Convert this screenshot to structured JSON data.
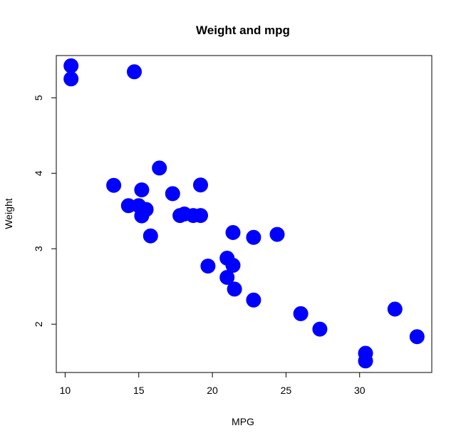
{
  "chart_data": {
    "type": "scatter",
    "title": "Weight and mpg",
    "xlabel": "MPG",
    "ylabel": "Weight",
    "xlim": [
      9.4,
      34.9
    ],
    "ylim": [
      1.36,
      5.56
    ],
    "xticks": [
      10,
      15,
      20,
      25,
      30
    ],
    "yticks": [
      2,
      3,
      4,
      5
    ],
    "grid": false,
    "marker_color": "#0000ff",
    "points": [
      {
        "x": 21.0,
        "y": 2.62
      },
      {
        "x": 21.0,
        "y": 2.875
      },
      {
        "x": 22.8,
        "y": 2.32
      },
      {
        "x": 21.4,
        "y": 3.215
      },
      {
        "x": 18.7,
        "y": 3.44
      },
      {
        "x": 18.1,
        "y": 3.46
      },
      {
        "x": 14.3,
        "y": 3.57
      },
      {
        "x": 24.4,
        "y": 3.19
      },
      {
        "x": 22.8,
        "y": 3.15
      },
      {
        "x": 19.2,
        "y": 3.44
      },
      {
        "x": 17.8,
        "y": 3.44
      },
      {
        "x": 16.4,
        "y": 4.07
      },
      {
        "x": 17.3,
        "y": 3.73
      },
      {
        "x": 15.2,
        "y": 3.78
      },
      {
        "x": 10.4,
        "y": 5.25
      },
      {
        "x": 10.4,
        "y": 5.424
      },
      {
        "x": 14.7,
        "y": 5.345
      },
      {
        "x": 32.4,
        "y": 2.2
      },
      {
        "x": 30.4,
        "y": 1.615
      },
      {
        "x": 33.9,
        "y": 1.835
      },
      {
        "x": 21.5,
        "y": 2.465
      },
      {
        "x": 15.5,
        "y": 3.52
      },
      {
        "x": 15.2,
        "y": 3.435
      },
      {
        "x": 13.3,
        "y": 3.84
      },
      {
        "x": 19.2,
        "y": 3.845
      },
      {
        "x": 27.3,
        "y": 1.935
      },
      {
        "x": 26.0,
        "y": 2.14
      },
      {
        "x": 30.4,
        "y": 1.513
      },
      {
        "x": 15.8,
        "y": 3.17
      },
      {
        "x": 19.7,
        "y": 2.77
      },
      {
        "x": 15.0,
        "y": 3.57
      },
      {
        "x": 21.4,
        "y": 2.78
      }
    ]
  }
}
